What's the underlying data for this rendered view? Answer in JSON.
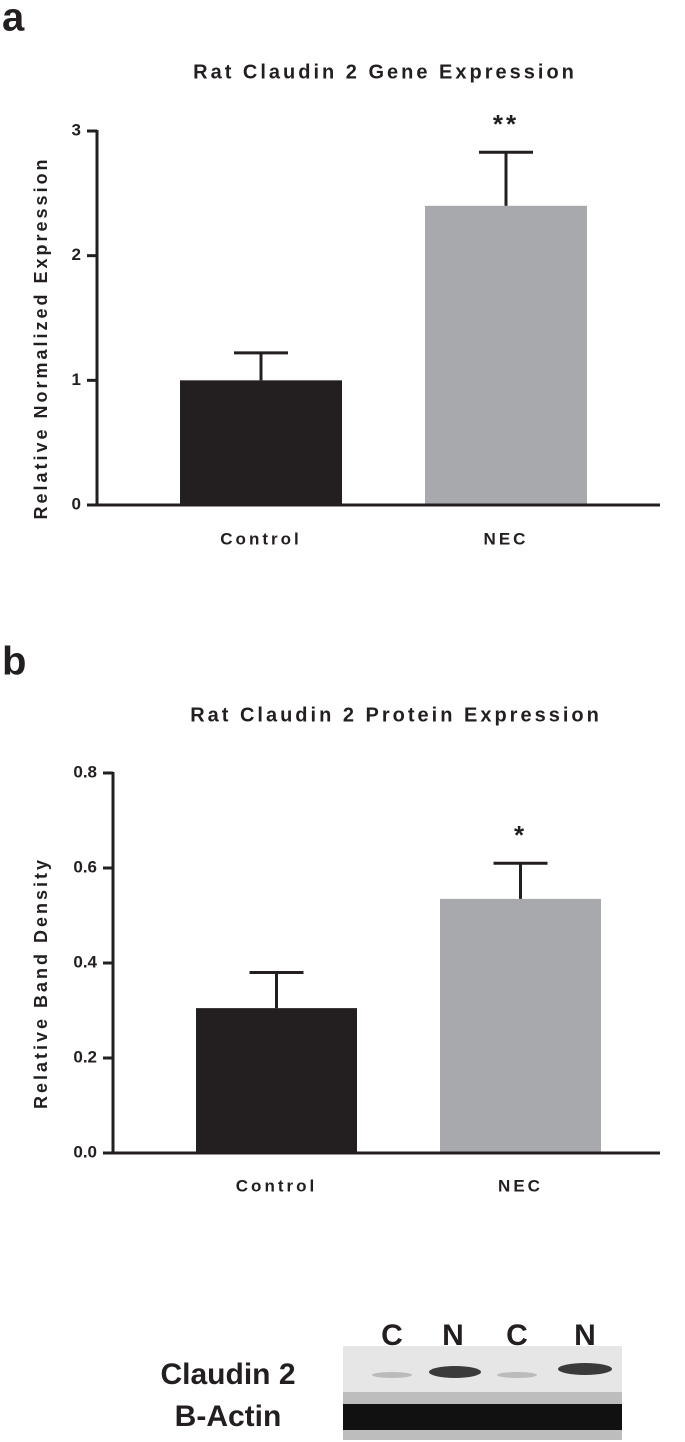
{
  "chart_data": [
    {
      "type": "bar",
      "panel_label": "a",
      "title": "Rat Claudin 2 Gene Expression",
      "y_label": "Relative Normalized Expression",
      "categories": [
        "Control",
        "NEC"
      ],
      "values": [
        1.0,
        2.4
      ],
      "errors": [
        0.22,
        0.43
      ],
      "colors": [
        "#231f20",
        "#a7a9ac"
      ],
      "annotations": [
        {
          "category": "NEC",
          "text": "**"
        }
      ],
      "ylim": [
        0,
        3
      ],
      "yticks": [
        0,
        1,
        2,
        3
      ]
    },
    {
      "type": "bar",
      "panel_label": "b",
      "title": "Rat Claudin 2 Protein Expression",
      "y_label": "Relative Band Density",
      "categories": [
        "Control",
        "NEC"
      ],
      "values": [
        0.305,
        0.535
      ],
      "errors": [
        0.075,
        0.075
      ],
      "colors": [
        "#231f20",
        "#a7a9ac"
      ],
      "annotations": [
        {
          "category": "NEC",
          "text": "*"
        }
      ],
      "ylim": [
        0,
        0.8
      ],
      "yticks": [
        {
          "value": 0,
          "label": "0.0"
        },
        {
          "value": 0.2,
          "label": "0.2"
        },
        {
          "value": 0.4,
          "label": "0.4"
        },
        {
          "value": 0.6,
          "label": "0.6"
        },
        {
          "value": 0.8,
          "label": "0.8"
        }
      ]
    }
  ],
  "blot": {
    "lanes": [
      "C",
      "N",
      "C",
      "N"
    ],
    "rows": [
      "Claudin 2",
      "B-Actin"
    ]
  }
}
